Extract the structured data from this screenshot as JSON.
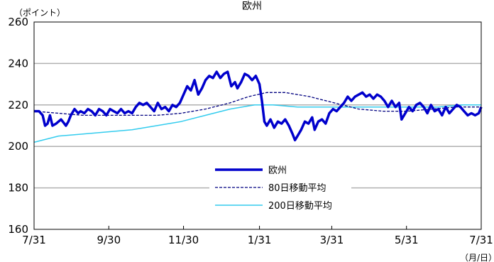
{
  "chart_data": {
    "type": "line",
    "title": "欧州",
    "ylabel": "（ポイント）",
    "xlabel": "（月/日）",
    "ylim": [
      160,
      260
    ],
    "yticks": [
      160,
      180,
      200,
      220,
      240,
      260
    ],
    "grid": true,
    "legend_placement": "center-bottom",
    "x_tick_labels": [
      "7/31",
      "9/30",
      "11/30",
      "1/31",
      "3/31",
      "5/31",
      "7/31"
    ],
    "x_tick_index": [
      0,
      61,
      122,
      184,
      243,
      304,
      365
    ],
    "x_range": [
      0,
      365
    ],
    "series": [
      {
        "name": "欧州",
        "color": "#0000cc",
        "style": "solid-thick",
        "points": [
          [
            0,
            217
          ],
          [
            4,
            217
          ],
          [
            7,
            215
          ],
          [
            9,
            210
          ],
          [
            11,
            211
          ],
          [
            13,
            215
          ],
          [
            15,
            210
          ],
          [
            18,
            211
          ],
          [
            22,
            213
          ],
          [
            26,
            210
          ],
          [
            28,
            212
          ],
          [
            30,
            215
          ],
          [
            33,
            218
          ],
          [
            36,
            216
          ],
          [
            38,
            217
          ],
          [
            41,
            216
          ],
          [
            44,
            218
          ],
          [
            47,
            217
          ],
          [
            50,
            215
          ],
          [
            53,
            218
          ],
          [
            56,
            217
          ],
          [
            59,
            215
          ],
          [
            62,
            218
          ],
          [
            65,
            217
          ],
          [
            68,
            216
          ],
          [
            71,
            218
          ],
          [
            74,
            216
          ],
          [
            77,
            217
          ],
          [
            80,
            216
          ],
          [
            83,
            219
          ],
          [
            86,
            221
          ],
          [
            89,
            220
          ],
          [
            92,
            221
          ],
          [
            95,
            219
          ],
          [
            98,
            217
          ],
          [
            101,
            221
          ],
          [
            104,
            218
          ],
          [
            107,
            219
          ],
          [
            110,
            217
          ],
          [
            113,
            220
          ],
          [
            116,
            219
          ],
          [
            119,
            221
          ],
          [
            122,
            225
          ],
          [
            125,
            229
          ],
          [
            128,
            227
          ],
          [
            131,
            232
          ],
          [
            134,
            225
          ],
          [
            137,
            228
          ],
          [
            140,
            232
          ],
          [
            143,
            234
          ],
          [
            146,
            233
          ],
          [
            149,
            236
          ],
          [
            152,
            233
          ],
          [
            155,
            235
          ],
          [
            158,
            236
          ],
          [
            161,
            229
          ],
          [
            164,
            231
          ],
          [
            166,
            228
          ],
          [
            169,
            231
          ],
          [
            172,
            235
          ],
          [
            175,
            234
          ],
          [
            178,
            232
          ],
          [
            181,
            234
          ],
          [
            184,
            230
          ],
          [
            186,
            222
          ],
          [
            188,
            212
          ],
          [
            190,
            210
          ],
          [
            193,
            213
          ],
          [
            196,
            209
          ],
          [
            199,
            212
          ],
          [
            202,
            211
          ],
          [
            205,
            213
          ],
          [
            208,
            210
          ],
          [
            211,
            206
          ],
          [
            213,
            203
          ],
          [
            215,
            205
          ],
          [
            218,
            208
          ],
          [
            221,
            212
          ],
          [
            224,
            211
          ],
          [
            227,
            214
          ],
          [
            229,
            208
          ],
          [
            232,
            212
          ],
          [
            235,
            213
          ],
          [
            238,
            211
          ],
          [
            241,
            216
          ],
          [
            244,
            218
          ],
          [
            247,
            217
          ],
          [
            250,
            219
          ],
          [
            253,
            221
          ],
          [
            256,
            224
          ],
          [
            259,
            222
          ],
          [
            262,
            224
          ],
          [
            265,
            225
          ],
          [
            268,
            226
          ],
          [
            271,
            224
          ],
          [
            274,
            225
          ],
          [
            277,
            223
          ],
          [
            280,
            225
          ],
          [
            283,
            224
          ],
          [
            286,
            222
          ],
          [
            289,
            219
          ],
          [
            292,
            222
          ],
          [
            295,
            219
          ],
          [
            298,
            221
          ],
          [
            300,
            213
          ],
          [
            303,
            216
          ],
          [
            306,
            219
          ],
          [
            309,
            217
          ],
          [
            312,
            220
          ],
          [
            315,
            221
          ],
          [
            318,
            219
          ],
          [
            321,
            216
          ],
          [
            324,
            220
          ],
          [
            327,
            217
          ],
          [
            330,
            218
          ],
          [
            333,
            215
          ],
          [
            336,
            219
          ],
          [
            339,
            216
          ],
          [
            342,
            218
          ],
          [
            345,
            220
          ],
          [
            348,
            219
          ],
          [
            351,
            217
          ],
          [
            354,
            215
          ],
          [
            357,
            216
          ],
          [
            360,
            215
          ],
          [
            363,
            216
          ],
          [
            365,
            219
          ]
        ]
      },
      {
        "name": "80日移動平均",
        "color": "#000080",
        "style": "dashed",
        "points": [
          [
            0,
            217
          ],
          [
            20,
            216
          ],
          [
            40,
            215
          ],
          [
            60,
            215
          ],
          [
            80,
            215
          ],
          [
            100,
            215
          ],
          [
            120,
            216
          ],
          [
            140,
            218
          ],
          [
            160,
            221
          ],
          [
            175,
            224
          ],
          [
            190,
            226
          ],
          [
            205,
            226
          ],
          [
            225,
            224
          ],
          [
            245,
            221
          ],
          [
            265,
            218
          ],
          [
            285,
            217
          ],
          [
            305,
            217
          ],
          [
            325,
            218
          ],
          [
            345,
            219
          ],
          [
            365,
            219
          ]
        ]
      },
      {
        "name": "200日移動平均",
        "color": "#33ccee",
        "style": "solid",
        "points": [
          [
            0,
            202
          ],
          [
            20,
            205
          ],
          [
            40,
            206
          ],
          [
            60,
            207
          ],
          [
            80,
            208
          ],
          [
            100,
            210
          ],
          [
            120,
            212
          ],
          [
            140,
            215
          ],
          [
            160,
            218
          ],
          [
            180,
            220
          ],
          [
            195,
            220
          ],
          [
            215,
            219
          ],
          [
            240,
            219
          ],
          [
            265,
            219
          ],
          [
            290,
            219
          ],
          [
            310,
            219
          ],
          [
            330,
            219
          ],
          [
            350,
            220
          ],
          [
            365,
            220
          ]
        ]
      }
    ]
  }
}
